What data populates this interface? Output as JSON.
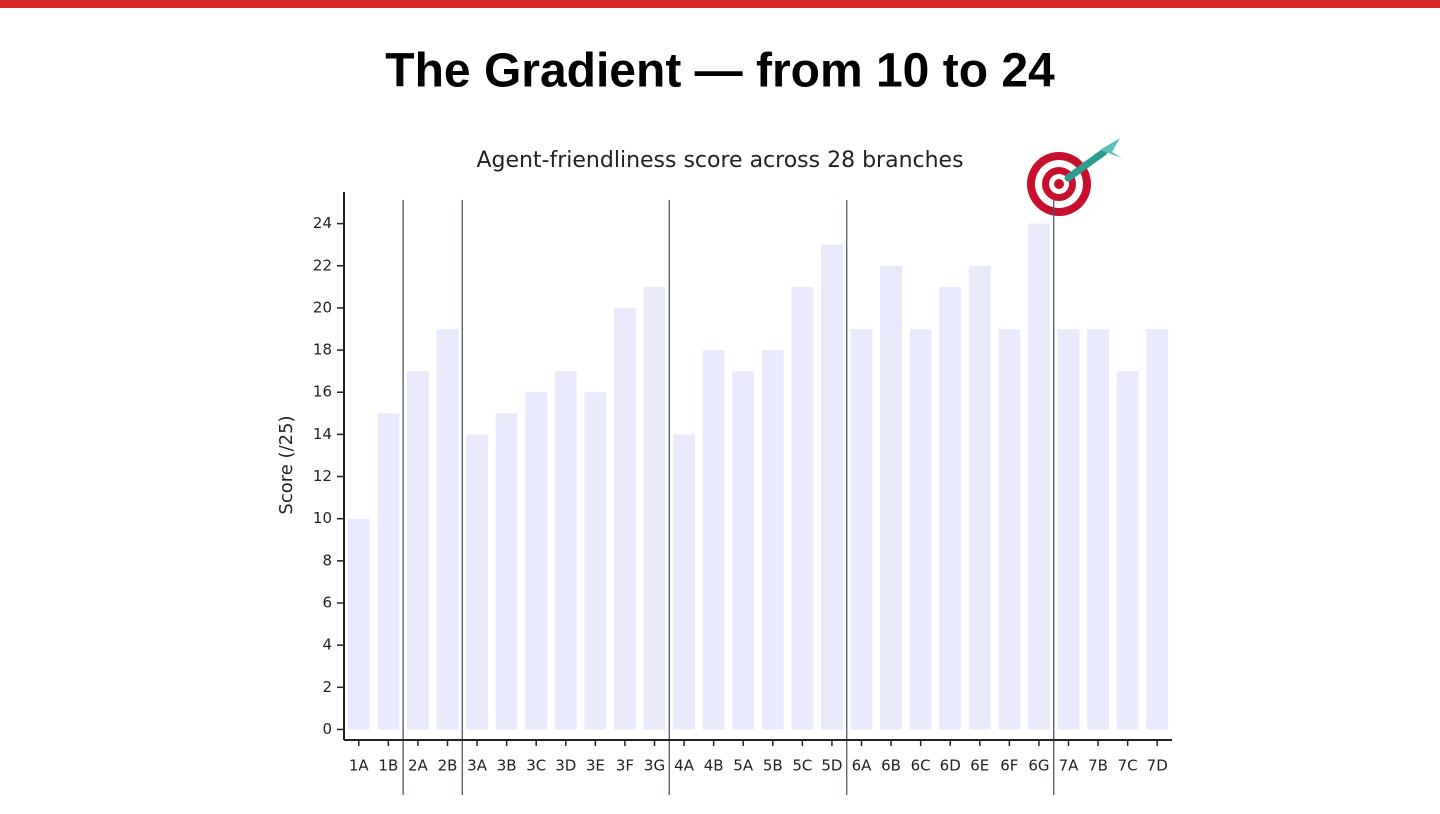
{
  "page_title": "The Gradient — from 10 to 24",
  "chart_data": {
    "type": "bar",
    "title": "Agent-friendliness score across 28 branches",
    "y_label": "Score (/25)",
    "categories": [
      "1A",
      "1B",
      "2A",
      "2B",
      "3A",
      "3B",
      "3C",
      "3D",
      "3E",
      "3F",
      "3G",
      "4A",
      "4B",
      "5A",
      "5B",
      "5C",
      "5D",
      "6A",
      "6B",
      "6C",
      "6D",
      "6E",
      "6F",
      "6G",
      "7A",
      "7B",
      "7C",
      "7D"
    ],
    "values": [
      10,
      15,
      17,
      19,
      14,
      15,
      16,
      17,
      16,
      20,
      21,
      14,
      18,
      17,
      18,
      21,
      23,
      19,
      22,
      19,
      21,
      22,
      19,
      24,
      19,
      19,
      17,
      19
    ],
    "color": "#e8eafc",
    "ylim": [
      -0.5,
      25.5
    ],
    "yticks": [
      0,
      2,
      4,
      6,
      8,
      10,
      12,
      14,
      16,
      18,
      20,
      22,
      24
    ],
    "grid": false,
    "group_starts": [
      2,
      4,
      11,
      17,
      24
    ]
  }
}
